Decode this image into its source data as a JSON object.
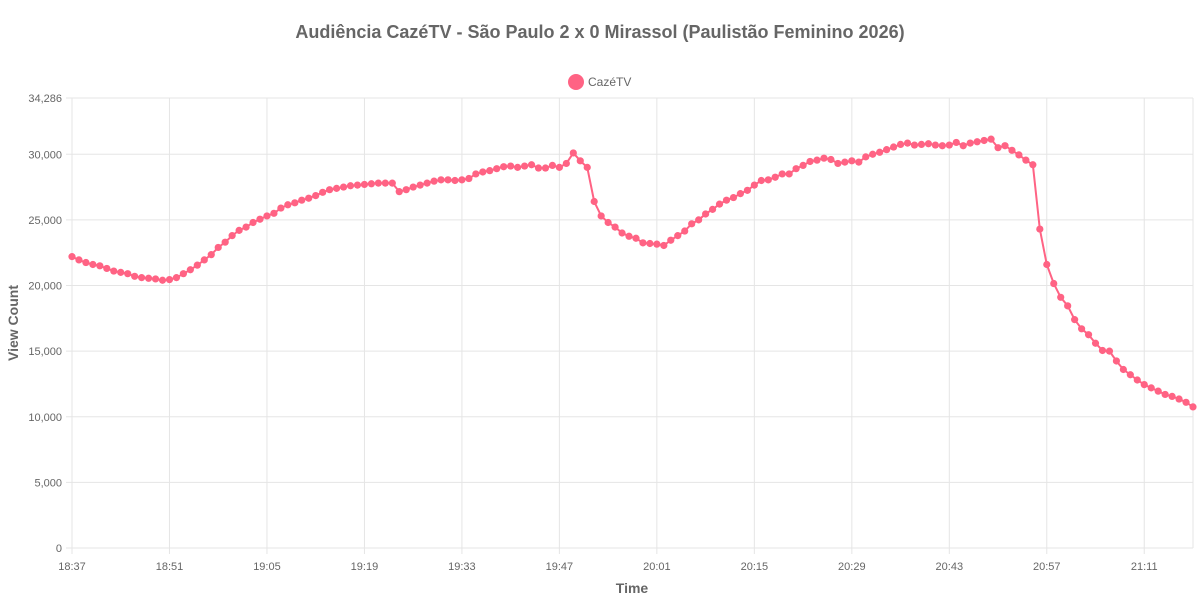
{
  "chart_data": {
    "type": "line",
    "title": "Audiência CazéTV - São Paulo 2 x 0 Mirassol (Paulistão Feminino 2026)",
    "xlabel": "Time",
    "ylabel": "View Count",
    "ylim": [
      0,
      34286
    ],
    "y_ticks": [
      "0",
      "5,000",
      "10,000",
      "15,000",
      "20,000",
      "25,000",
      "30,000",
      "34,286"
    ],
    "y_tick_values": [
      0,
      5000,
      10000,
      15000,
      20000,
      25000,
      30000,
      34286
    ],
    "x_tick_labels": [
      "18:37",
      "18:51",
      "19:05",
      "19:19",
      "19:33",
      "19:47",
      "20:01",
      "20:15",
      "20:29",
      "20:43",
      "20:57",
      "21:11"
    ],
    "x_tick_indices": [
      0,
      14,
      28,
      42,
      56,
      70,
      84,
      98,
      112,
      126,
      140,
      154
    ],
    "grid": true,
    "legend_position": "top-center",
    "series": [
      {
        "name": "CazéTV",
        "color": "#ff6384",
        "values": [
          22200,
          21950,
          21750,
          21600,
          21500,
          21300,
          21100,
          21000,
          20900,
          20700,
          20600,
          20550,
          20500,
          20400,
          20450,
          20600,
          20900,
          21200,
          21550,
          21950,
          22350,
          22900,
          23300,
          23800,
          24200,
          24450,
          24800,
          25050,
          25300,
          25500,
          25900,
          26150,
          26300,
          26500,
          26650,
          26850,
          27100,
          27300,
          27400,
          27500,
          27600,
          27650,
          27700,
          27750,
          27800,
          27800,
          27800,
          27150,
          27300,
          27500,
          27650,
          27800,
          27950,
          28050,
          28050,
          28000,
          28050,
          28150,
          28500,
          28650,
          28750,
          28900,
          29050,
          29100,
          29000,
          29100,
          29200,
          28950,
          28950,
          29150,
          29000,
          29300,
          30100,
          29500,
          29000,
          26400,
          25300,
          24800,
          24450,
          24000,
          23750,
          23600,
          23250,
          23200,
          23150,
          23050,
          23450,
          23800,
          24150,
          24700,
          25000,
          25450,
          25800,
          26200,
          26500,
          26700,
          27000,
          27250,
          27650,
          28000,
          28050,
          28250,
          28500,
          28500,
          28900,
          29150,
          29450,
          29550,
          29700,
          29600,
          29300,
          29400,
          29500,
          29400,
          29800,
          30000,
          30150,
          30350,
          30550,
          30750,
          30850,
          30700,
          30750,
          30800,
          30700,
          30650,
          30700,
          30900,
          30650,
          30850,
          30950,
          31050,
          31150,
          30500,
          30650,
          30300,
          29950,
          29550,
          29200,
          24300,
          21600,
          20150,
          19100,
          18450,
          17400,
          16700,
          16250,
          15600,
          15050,
          15000,
          14250,
          13600,
          13200,
          12800,
          12450,
          12200,
          11950,
          11700,
          11550,
          11350,
          11100,
          10750
        ]
      }
    ]
  }
}
